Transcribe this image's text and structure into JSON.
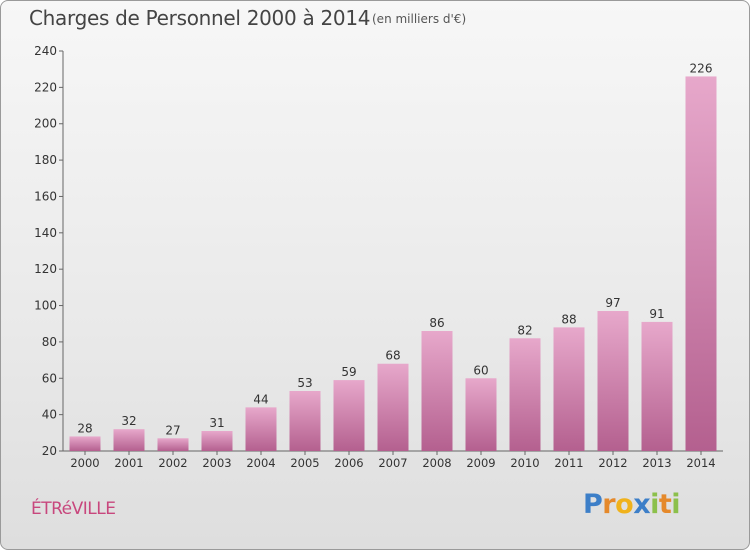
{
  "header": {
    "title": "Charges de Personnel 2000 à 2014",
    "subtitle": "(en milliers d'€)"
  },
  "footer": {
    "city": "ÉTRéVILLE",
    "brand_letters": [
      "P",
      "r",
      "o",
      "x",
      "i",
      "t",
      "i"
    ],
    "brand_colors": [
      "#3d7fc8",
      "#e5892b",
      "#f0b21c",
      "#3d7fc8",
      "#8cc04b",
      "#e5892b",
      "#8cc04b"
    ]
  },
  "colors": {
    "bar_light": "#e7a8cb",
    "bar_dark": "#b4608f",
    "city": "#c8477d"
  },
  "chart_data": {
    "type": "bar",
    "categories": [
      "2000",
      "2001",
      "2002",
      "2003",
      "2004",
      "2005",
      "2006",
      "2007",
      "2008",
      "2009",
      "2010",
      "2011",
      "2012",
      "2013",
      "2014"
    ],
    "values": [
      28,
      32,
      27,
      31,
      44,
      53,
      59,
      68,
      86,
      60,
      82,
      88,
      97,
      91,
      226
    ],
    "data_labels": [
      "28",
      "32",
      "27",
      "31",
      "44",
      "53",
      "59",
      "68",
      "86",
      "60",
      "82",
      "88",
      "97",
      "91",
      "226"
    ],
    "title": "Charges de Personnel 2000 à 2014",
    "subtitle": "(en milliers d'€)",
    "ylim": [
      20,
      240
    ],
    "yticks": [
      20,
      40,
      60,
      80,
      100,
      120,
      140,
      160,
      180,
      200,
      220,
      240
    ],
    "ytick_labels": [
      "20",
      "40",
      "60",
      "80",
      "100",
      "120",
      "140",
      "160",
      "180",
      "200",
      "220",
      "240"
    ],
    "grid": false,
    "legend": "none"
  }
}
